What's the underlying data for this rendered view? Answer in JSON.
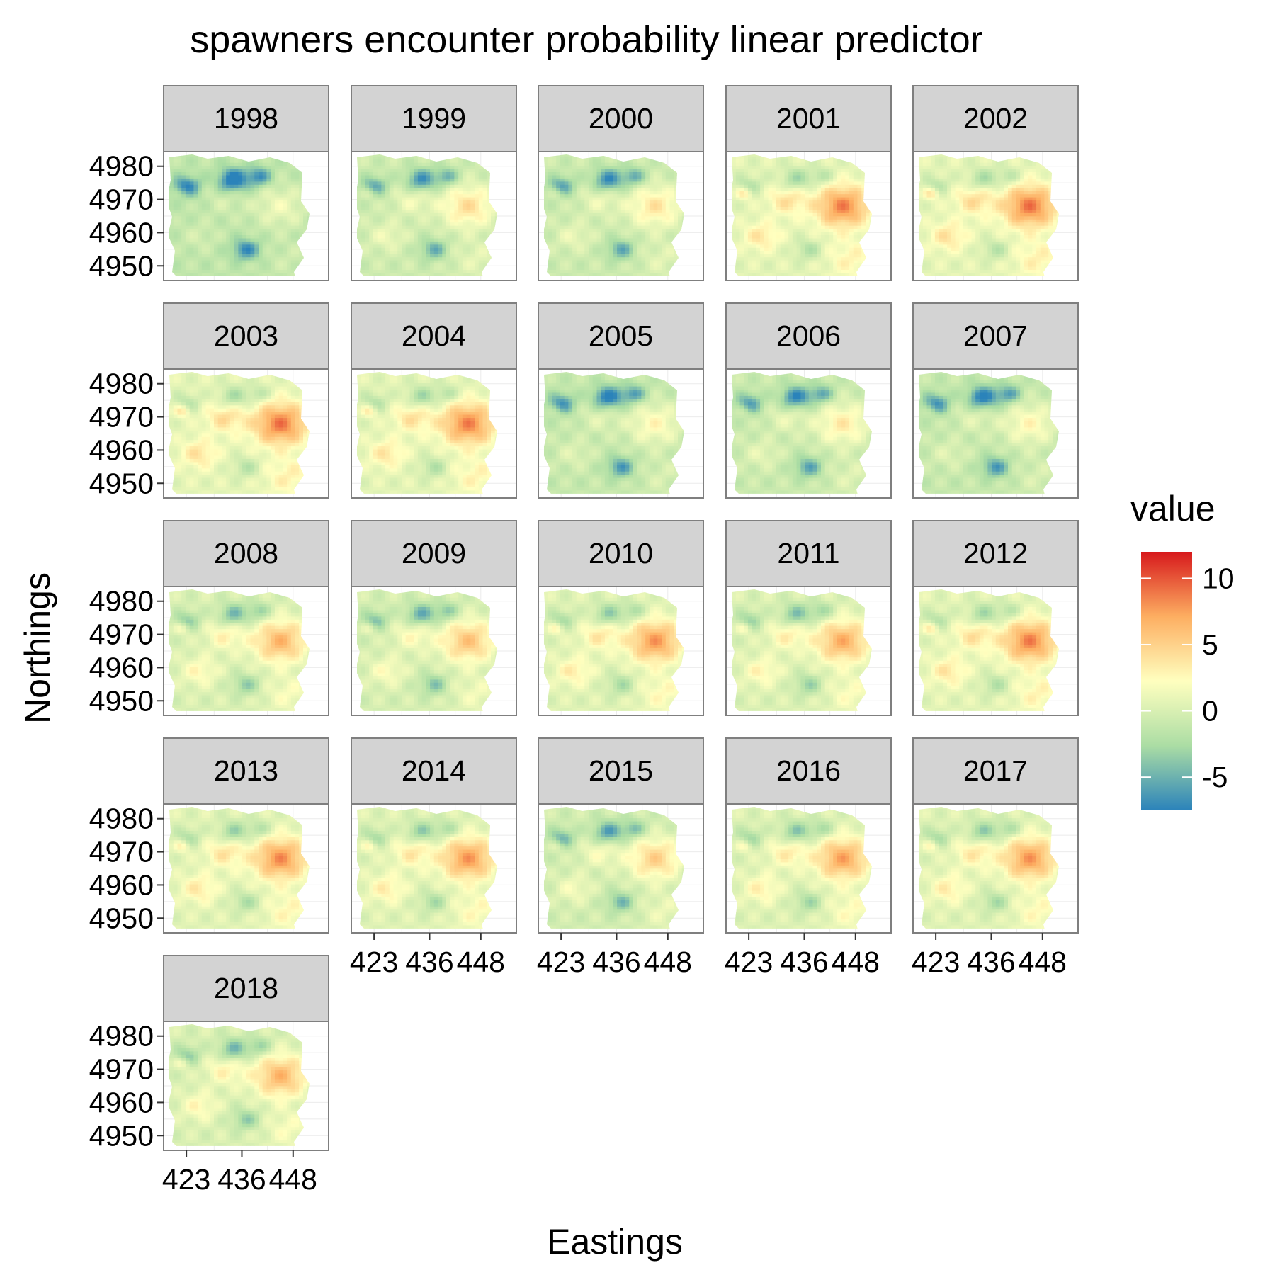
{
  "chart_data": {
    "type": "heatmap",
    "title": "spawners encounter probability linear predictor",
    "xlabel": "Eastings",
    "ylabel": "Northings",
    "facet_labels": [
      "1998",
      "1999",
      "2000",
      "2001",
      "2002",
      "2003",
      "2004",
      "2005",
      "2006",
      "2007",
      "2008",
      "2009",
      "2010",
      "2011",
      "2012",
      "2013",
      "2014",
      "2015",
      "2016",
      "2017",
      "2018"
    ],
    "x_ticks": [
      "423",
      "436",
      "448"
    ],
    "y_ticks": [
      "4950",
      "4960",
      "4970",
      "4980"
    ],
    "xlim": [
      418,
      456
    ],
    "ylim": [
      4946,
      4984
    ],
    "legend": {
      "title": "value",
      "ticks": [
        "10",
        "5",
        "0",
        "-5"
      ],
      "range": [
        -7.5,
        12
      ],
      "colors": [
        "#2b83ba",
        "#abdda4",
        "#ffffbf",
        "#fdae61",
        "#d7191c"
      ],
      "position": "right"
    },
    "panel_intensity": [
      -0.35,
      0.0,
      -0.05,
      0.55,
      0.6,
      0.6,
      0.55,
      -0.2,
      -0.1,
      -0.2,
      0.3,
      0.2,
      0.45,
      0.35,
      0.55,
      0.5,
      0.45,
      0.1,
      0.4,
      0.45,
      0.3
    ]
  }
}
